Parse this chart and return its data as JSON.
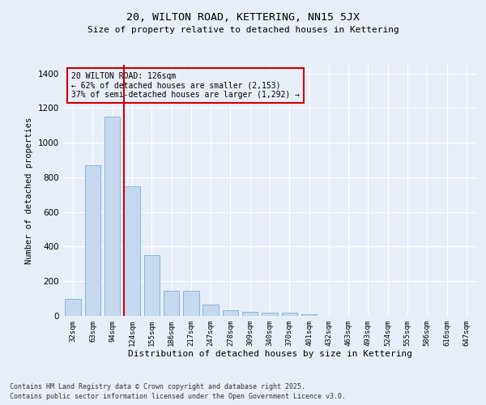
{
  "title1": "20, WILTON ROAD, KETTERING, NN15 5JX",
  "title2": "Size of property relative to detached houses in Kettering",
  "xlabel": "Distribution of detached houses by size in Kettering",
  "ylabel": "Number of detached properties",
  "categories": [
    "32sqm",
    "63sqm",
    "94sqm",
    "124sqm",
    "155sqm",
    "186sqm",
    "217sqm",
    "247sqm",
    "278sqm",
    "309sqm",
    "340sqm",
    "370sqm",
    "401sqm",
    "432sqm",
    "463sqm",
    "493sqm",
    "524sqm",
    "555sqm",
    "586sqm",
    "616sqm",
    "647sqm"
  ],
  "values": [
    100,
    870,
    1150,
    750,
    350,
    145,
    145,
    65,
    35,
    25,
    20,
    18,
    10,
    0,
    0,
    0,
    0,
    0,
    0,
    0,
    0
  ],
  "bar_color": "#c5d8f0",
  "bar_edge_color": "#7aadd4",
  "background_color": "#e8eef8",
  "grid_color": "#ffffff",
  "annotation_box_color": "#cc0000",
  "vline_color": "#cc0000",
  "vline_x": 2.6,
  "annotation_title": "20 WILTON ROAD: 126sqm",
  "annotation_line1": "← 62% of detached houses are smaller (2,153)",
  "annotation_line2": "37% of semi-detached houses are larger (1,292) →",
  "ylim": [
    0,
    1450
  ],
  "yticks": [
    0,
    200,
    400,
    600,
    800,
    1000,
    1200,
    1400
  ],
  "footnote1": "Contains HM Land Registry data © Crown copyright and database right 2025.",
  "footnote2": "Contains public sector information licensed under the Open Government Licence v3.0."
}
